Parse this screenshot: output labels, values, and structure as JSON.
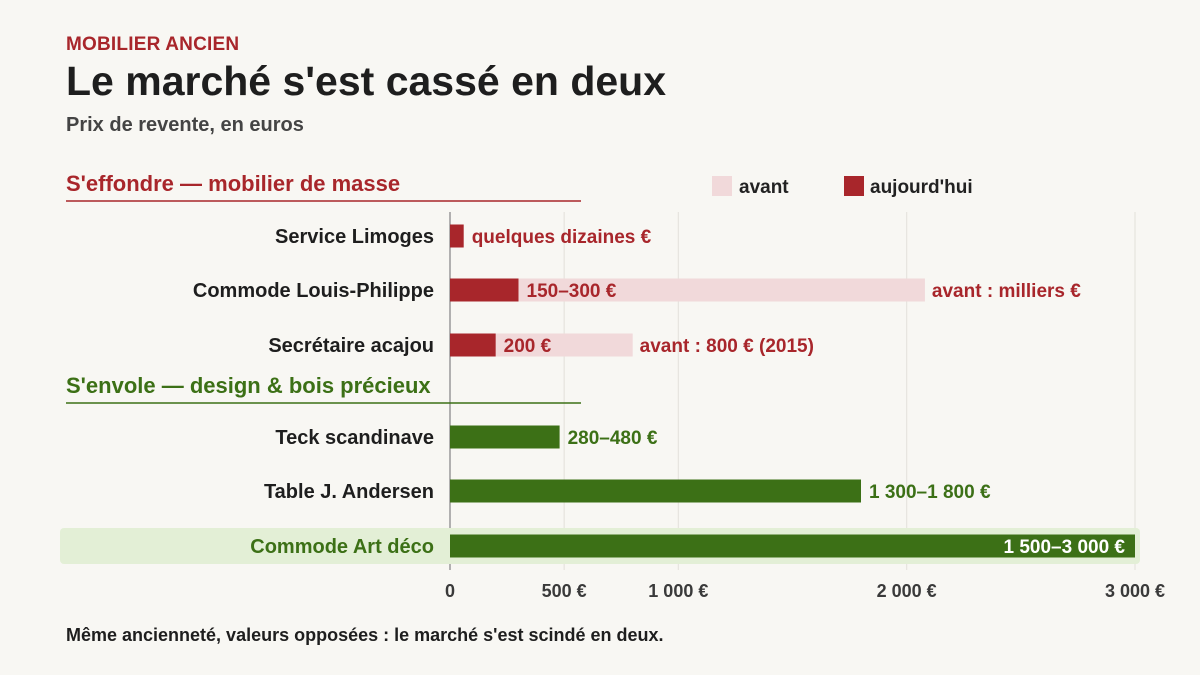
{
  "header": {
    "kicker": "MOBILIER ANCIEN",
    "title": "Le marché s'est cassé en deux",
    "subtitle": "Prix de revente, en euros"
  },
  "footer": {
    "note": "Même ancienneté, valeurs opposées : le marché s'est scindé en deux."
  },
  "colors": {
    "decline": "#a8262b",
    "decline_before": "#f1d9da",
    "rise": "#3c7016",
    "highlight_bg": "#e3efd6",
    "grid": "#e6e4de",
    "axis": "#999999"
  },
  "chart_data": {
    "type": "bar",
    "orientation": "horizontal",
    "x_unit": "€",
    "xlim": [
      0,
      3000
    ],
    "x_ticks": [
      0,
      500,
      1000,
      2000,
      3000
    ],
    "x_tick_labels": [
      "0",
      "500 €",
      "1 000 €",
      "2 000 €",
      "3 000 €"
    ],
    "grid": true,
    "legend": {
      "placement": "top-right",
      "entries": [
        {
          "key": "before",
          "label": "avant"
        },
        {
          "key": "now",
          "label": "aujourd'hui"
        }
      ]
    },
    "groups": [
      {
        "title": "S'effondre — mobilier de masse",
        "color_key": "decline",
        "items": [
          {
            "label": "Service Limoges",
            "now": 60,
            "before": null,
            "now_label": "quelques dizaines €",
            "before_label": ""
          },
          {
            "label": "Commode Louis-Philippe",
            "now": 300,
            "before": 2080,
            "now_label": "150–300 €",
            "before_label": "avant : milliers €"
          },
          {
            "label": "Secrétaire acajou",
            "now": 200,
            "before": 800,
            "now_label": "200 €",
            "before_label": "avant : 800 € (2015)"
          }
        ]
      },
      {
        "title": "S'envole — design & bois précieux",
        "color_key": "rise",
        "items": [
          {
            "label": "Teck scandinave",
            "now": 480,
            "now_label": "280–480 €"
          },
          {
            "label": "Table J. Andersen",
            "now": 1800,
            "now_label": "1 300–1 800 €"
          },
          {
            "label": "Commode Art déco",
            "now": 3000,
            "now_label": "1 500–3 000 €",
            "highlight": true
          }
        ]
      }
    ]
  }
}
